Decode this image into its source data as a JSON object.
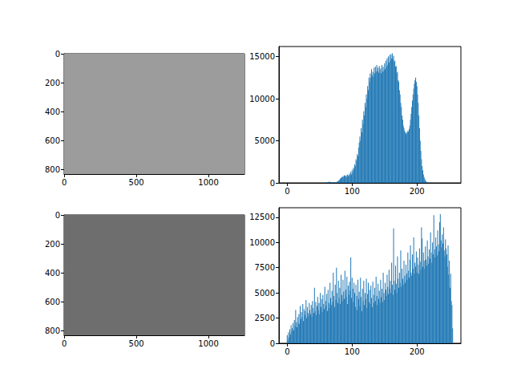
{
  "chart_data": [
    {
      "type": "image",
      "color": "#9c9c9c",
      "xlim": [
        -0.5,
        1249.5
      ],
      "ylim": [
        832.5,
        -0.5
      ],
      "xticks": [
        0,
        500,
        1000
      ],
      "yticks": [
        0,
        200,
        400,
        600,
        800
      ]
    },
    {
      "type": "bar",
      "color": "#1f77b4",
      "xlim": [
        -12.75,
        267.75
      ],
      "ylim": [
        0,
        16200
      ],
      "xticks": [
        0,
        100,
        200
      ],
      "yticks": [
        0,
        5000,
        10000,
        15000
      ],
      "x": [
        0,
        1,
        2,
        3,
        4,
        5,
        6,
        7,
        8,
        9,
        10,
        11,
        12,
        13,
        14,
        15,
        16,
        17,
        18,
        19,
        20,
        21,
        22,
        23,
        24,
        25,
        26,
        27,
        28,
        29,
        30,
        31,
        32,
        33,
        34,
        35,
        36,
        37,
        38,
        39,
        40,
        41,
        42,
        43,
        44,
        45,
        46,
        47,
        48,
        49,
        50,
        51,
        52,
        53,
        54,
        55,
        56,
        57,
        58,
        59,
        60,
        61,
        62,
        63,
        64,
        65,
        66,
        67,
        68,
        69,
        70,
        71,
        72,
        73,
        74,
        75,
        76,
        77,
        78,
        79,
        80,
        81,
        82,
        83,
        84,
        85,
        86,
        87,
        88,
        89,
        90,
        91,
        92,
        93,
        94,
        95,
        96,
        97,
        98,
        99,
        100,
        101,
        102,
        103,
        104,
        105,
        106,
        107,
        108,
        109,
        110,
        111,
        112,
        113,
        114,
        115,
        116,
        117,
        118,
        119,
        120,
        121,
        122,
        123,
        124,
        125,
        126,
        127,
        128,
        129,
        130,
        131,
        132,
        133,
        134,
        135,
        136,
        137,
        138,
        139,
        140,
        141,
        142,
        143,
        144,
        145,
        146,
        147,
        148,
        149,
        150,
        151,
        152,
        153,
        154,
        155,
        156,
        157,
        158,
        159,
        160,
        161,
        162,
        163,
        164,
        165,
        166,
        167,
        168,
        169,
        170,
        171,
        172,
        173,
        174,
        175,
        176,
        177,
        178,
        179,
        180,
        181,
        182,
        183,
        184,
        185,
        186,
        187,
        188,
        189,
        190,
        191,
        192,
        193,
        194,
        195,
        196,
        197,
        198,
        199,
        200,
        201,
        202,
        203,
        204,
        205,
        206,
        207,
        208,
        209,
        210,
        211,
        212,
        213,
        214,
        215,
        216,
        217,
        218,
        219,
        220,
        221,
        222,
        223,
        224,
        225,
        226,
        227,
        228,
        229,
        230,
        231,
        232,
        233,
        234,
        235,
        236,
        237,
        238,
        239,
        240,
        241,
        242,
        243,
        244,
        245,
        246,
        247,
        248,
        249,
        250,
        251,
        252,
        253,
        254,
        255
      ],
      "values": [
        0,
        0,
        0,
        0,
        0,
        0,
        0,
        0,
        0,
        0,
        0,
        0,
        0,
        0,
        0,
        0,
        0,
        0,
        0,
        0,
        0,
        0,
        0,
        0,
        0,
        0,
        0,
        0,
        0,
        0,
        0,
        0,
        0,
        0,
        0,
        0,
        0,
        0,
        0,
        0,
        0,
        0,
        0,
        0,
        0,
        0,
        0,
        0,
        0,
        0,
        0,
        0,
        0,
        0,
        0,
        0,
        0,
        0,
        0,
        0,
        20,
        40,
        60,
        80,
        120,
        150,
        130,
        100,
        80,
        60,
        50,
        40,
        40,
        50,
        60,
        80,
        100,
        150,
        200,
        250,
        300,
        400,
        500,
        600,
        700,
        650,
        800,
        700,
        900,
        850,
        750,
        900,
        700,
        1000,
        800,
        900,
        1100,
        900,
        1300,
        1000,
        1500,
        1200,
        1800,
        1600,
        2200,
        2000,
        2800,
        2600,
        3400,
        3200,
        4200,
        4800,
        5500,
        5000,
        6500,
        6000,
        7500,
        7000,
        8500,
        8000,
        9500,
        9000,
        10500,
        10000,
        11500,
        11000,
        12500,
        12000,
        13000,
        12500,
        13500,
        12800,
        13200,
        12600,
        13700,
        13000,
        13800,
        13200,
        14000,
        13300,
        13700,
        13100,
        13900,
        13400,
        13600,
        13000,
        14000,
        13200,
        13800,
        13300,
        14200,
        13500,
        14500,
        13800,
        14800,
        14000,
        15000,
        14300,
        15200,
        14500,
        15300,
        14800,
        15400,
        14700,
        15100,
        14400,
        14500,
        13800,
        13900,
        13000,
        13200,
        12200,
        12000,
        11000,
        10500,
        9500,
        9000,
        8000,
        7500,
        6800,
        6500,
        6200,
        6000,
        5800,
        6000,
        5900,
        6200,
        6100,
        6400,
        6800,
        7500,
        8200,
        9000,
        9800,
        10500,
        11200,
        11800,
        12200,
        12500,
        12000,
        11500,
        10500,
        9500,
        8000,
        6500,
        5000,
        3800,
        2800,
        2000,
        1500,
        1000,
        700,
        500,
        300,
        200,
        100,
        50,
        20,
        0,
        0,
        0,
        0,
        0,
        0,
        0,
        0,
        0,
        0,
        0,
        0,
        0,
        0,
        0,
        0,
        0,
        0,
        0,
        0,
        0,
        0,
        0,
        0,
        0,
        0,
        0,
        0,
        0,
        0,
        0,
        0,
        0,
        0,
        0,
        0,
        0,
        0
      ]
    },
    {
      "type": "image",
      "color": "#6e6e6e",
      "xlim": [
        -0.5,
        1249.5
      ],
      "ylim": [
        832.5,
        -0.5
      ],
      "xticks": [
        0,
        500,
        1000
      ],
      "yticks": [
        0,
        200,
        400,
        600,
        800
      ]
    },
    {
      "type": "bar",
      "color": "#1f77b4",
      "xlim": [
        -12.75,
        267.75
      ],
      "ylim": [
        0,
        13440
      ],
      "xticks": [
        0,
        100,
        200
      ],
      "yticks": [
        0,
        2500,
        5000,
        7500,
        10000,
        12500
      ],
      "x": [
        0,
        1,
        2,
        3,
        4,
        5,
        6,
        7,
        8,
        9,
        10,
        11,
        12,
        13,
        14,
        15,
        16,
        17,
        18,
        19,
        20,
        21,
        22,
        23,
        24,
        25,
        26,
        27,
        28,
        29,
        30,
        31,
        32,
        33,
        34,
        35,
        36,
        37,
        38,
        39,
        40,
        41,
        42,
        43,
        44,
        45,
        46,
        47,
        48,
        49,
        50,
        51,
        52,
        53,
        54,
        55,
        56,
        57,
        58,
        59,
        60,
        61,
        62,
        63,
        64,
        65,
        66,
        67,
        68,
        69,
        70,
        71,
        72,
        73,
        74,
        75,
        76,
        77,
        78,
        79,
        80,
        81,
        82,
        83,
        84,
        85,
        86,
        87,
        88,
        89,
        90,
        91,
        92,
        93,
        94,
        95,
        96,
        97,
        98,
        99,
        100,
        101,
        102,
        103,
        104,
        105,
        106,
        107,
        108,
        109,
        110,
        111,
        112,
        113,
        114,
        115,
        116,
        117,
        118,
        119,
        120,
        121,
        122,
        123,
        124,
        125,
        126,
        127,
        128,
        129,
        130,
        131,
        132,
        133,
        134,
        135,
        136,
        137,
        138,
        139,
        140,
        141,
        142,
        143,
        144,
        145,
        146,
        147,
        148,
        149,
        150,
        151,
        152,
        153,
        154,
        155,
        156,
        157,
        158,
        159,
        160,
        161,
        162,
        163,
        164,
        165,
        166,
        167,
        168,
        169,
        170,
        171,
        172,
        173,
        174,
        175,
        176,
        177,
        178,
        179,
        180,
        181,
        182,
        183,
        184,
        185,
        186,
        187,
        188,
        189,
        190,
        191,
        192,
        193,
        194,
        195,
        196,
        197,
        198,
        199,
        200,
        201,
        202,
        203,
        204,
        205,
        206,
        207,
        208,
        209,
        210,
        211,
        212,
        213,
        214,
        215,
        216,
        217,
        218,
        219,
        220,
        221,
        222,
        223,
        224,
        225,
        226,
        227,
        228,
        229,
        230,
        231,
        232,
        233,
        234,
        235,
        236,
        237,
        238,
        239,
        240,
        241,
        242,
        243,
        244,
        245,
        246,
        247,
        248,
        249,
        250,
        251,
        252,
        253,
        254,
        255
      ],
      "values": [
        800,
        300,
        1100,
        600,
        1400,
        900,
        1800,
        1200,
        1500,
        2000,
        1300,
        2300,
        1700,
        3300,
        2100,
        1600,
        2600,
        2000,
        2900,
        1900,
        3700,
        2400,
        3100,
        2600,
        3900,
        2200,
        3400,
        2800,
        3200,
        4300,
        2500,
        3600,
        3000,
        2700,
        4000,
        3300,
        2900,
        3800,
        2600,
        4200,
        3500,
        3000,
        5500,
        3200,
        4100,
        2800,
        3700,
        4600,
        3300,
        4000,
        2900,
        5000,
        3600,
        4400,
        3100,
        4800,
        3900,
        3400,
        5600,
        4200,
        3700,
        4900,
        3200,
        5300,
        4000,
        3500,
        6000,
        4500,
        3800,
        5200,
        4100,
        7000,
        4700,
        3600,
        5800,
        4300,
        7500,
        5000,
        4000,
        6200,
        4500,
        5500,
        3900,
        6800,
        4800,
        4200,
        6300,
        5100,
        4400,
        7200,
        5300,
        4600,
        6600,
        3900,
        5700,
        4800,
        6100,
        5200,
        8500,
        4500,
        6500,
        5400,
        4100,
        6000,
        5000,
        3600,
        5800,
        4700,
        3300,
        6300,
        4400,
        5100,
        3700,
        6500,
        4600,
        3200,
        5400,
        4200,
        6200,
        3800,
        5000,
        4400,
        6400,
        3500,
        4900,
        6000,
        4100,
        5300,
        3900,
        5700,
        4500,
        3600,
        6100,
        4800,
        4000,
        5500,
        4200,
        6600,
        4700,
        3800,
        5900,
        4400,
        5200,
        4000,
        6300,
        4600,
        5400,
        4100,
        7000,
        5000,
        4300,
        6000,
        5300,
        4700,
        6800,
        5600,
        4900,
        7300,
        5400,
        6200,
        5000,
        8000,
        5800,
        4800,
        11400,
        6200,
        5300,
        7700,
        5900,
        5000,
        8600,
        6400,
        5500,
        7000,
        6000,
        9200,
        5600,
        7400,
        6400,
        5800,
        8200,
        6700,
        6000,
        7800,
        6900,
        6300,
        9000,
        7200,
        6500,
        8300,
        9700,
        7000,
        6700,
        8800,
        7400,
        10500,
        6900,
        8000,
        7600,
        9100,
        7000,
        8500,
        7800,
        6900,
        9400,
        8100,
        7300,
        11500,
        10400,
        7600,
        9000,
        8200,
        7400,
        9600,
        8300,
        7700,
        10200,
        8600,
        7900,
        9300,
        8400,
        11000,
        9000,
        8000,
        10000,
        8800,
        12700,
        9300,
        8500,
        10500,
        9600,
        8700,
        11200,
        9800,
        9100,
        12000,
        12800,
        10200,
        9500,
        10800,
        9900,
        11500,
        9200,
        8600,
        10300,
        9400,
        8800,
        7600,
        9700,
        6800,
        8200,
        5500,
        6900,
        4200,
        3800,
        1500
      ]
    }
  ]
}
